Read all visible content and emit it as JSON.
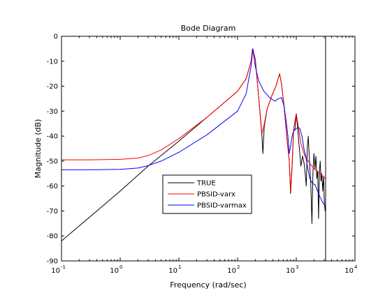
{
  "chart_data": {
    "type": "line",
    "title": "Bode Diagram",
    "xlabel": "Frequency  (rad/sec)",
    "ylabel": "Magnitude (dB)",
    "xscale": "log",
    "xlim": [
      0.1,
      10000
    ],
    "ylim": [
      -90,
      0
    ],
    "x_tick_labels": [
      {
        "base": "10",
        "exp": "-1",
        "value": 0.1
      },
      {
        "base": "10",
        "exp": "0",
        "value": 1
      },
      {
        "base": "10",
        "exp": "1",
        "value": 10
      },
      {
        "base": "10",
        "exp": "2",
        "value": 100
      },
      {
        "base": "10",
        "exp": "3",
        "value": 1000
      },
      {
        "base": "10",
        "exp": "4",
        "value": 10000
      }
    ],
    "y_ticks": [
      0,
      -10,
      -20,
      -30,
      -40,
      -50,
      -60,
      -70,
      -80,
      -90
    ],
    "y_tick_labels": [
      "0",
      "-10",
      "-20",
      "-30",
      "-40",
      "-50",
      "-60",
      "-70",
      "-80",
      "-90"
    ],
    "grid": false,
    "legend_position": "lower-center",
    "vertical_line_x": 3160,
    "series": [
      {
        "name": "TRUE",
        "color": "#000000",
        "points": [
          [
            0.1,
            -82
          ],
          [
            0.3,
            -72.5
          ],
          [
            1,
            -62
          ],
          [
            3,
            -52
          ],
          [
            10,
            -42
          ],
          [
            30,
            -32.5
          ],
          [
            100,
            -22
          ],
          [
            140,
            -17
          ],
          [
            170,
            -10
          ],
          [
            180,
            -5
          ],
          [
            200,
            -9
          ],
          [
            230,
            -25
          ],
          [
            260,
            -40
          ],
          [
            270,
            -47
          ],
          [
            285,
            -36
          ],
          [
            320,
            -29
          ],
          [
            380,
            -24
          ],
          [
            450,
            -20
          ],
          [
            520,
            -15
          ],
          [
            560,
            -19
          ],
          [
            620,
            -28
          ],
          [
            700,
            -42
          ],
          [
            760,
            -50
          ],
          [
            800,
            -63
          ],
          [
            850,
            -52
          ],
          [
            900,
            -38
          ],
          [
            950,
            -37
          ],
          [
            1000,
            -31
          ],
          [
            1050,
            -36
          ],
          [
            1120,
            -44
          ],
          [
            1200,
            -52
          ],
          [
            1280,
            -48
          ],
          [
            1360,
            -51
          ],
          [
            1420,
            -55
          ],
          [
            1480,
            -60
          ],
          [
            1540,
            -45
          ],
          [
            1600,
            -40
          ],
          [
            1680,
            -50
          ],
          [
            1760,
            -58
          ],
          [
            1850,
            -75
          ],
          [
            1920,
            -55
          ],
          [
            2000,
            -47
          ],
          [
            2080,
            -53
          ],
          [
            2160,
            -48
          ],
          [
            2240,
            -57
          ],
          [
            2320,
            -54
          ],
          [
            2400,
            -73
          ],
          [
            2480,
            -54
          ],
          [
            2560,
            -50
          ],
          [
            2640,
            -58
          ],
          [
            2720,
            -55
          ],
          [
            2820,
            -62
          ],
          [
            2920,
            -56
          ],
          [
            3000,
            -66
          ],
          [
            3100,
            -70
          ],
          [
            3150,
            -68
          ]
        ]
      },
      {
        "name": "PBSID-varx",
        "color": "#ff0000",
        "points": [
          [
            0.1,
            -49.5
          ],
          [
            0.3,
            -49.5
          ],
          [
            1,
            -49.3
          ],
          [
            2,
            -48.8
          ],
          [
            3,
            -47.8
          ],
          [
            5,
            -45.5
          ],
          [
            10,
            -41
          ],
          [
            30,
            -32.5
          ],
          [
            100,
            -22
          ],
          [
            140,
            -17
          ],
          [
            170,
            -10
          ],
          [
            180,
            -5
          ],
          [
            200,
            -9
          ],
          [
            230,
            -25
          ],
          [
            260,
            -39
          ],
          [
            280,
            -36
          ],
          [
            320,
            -29
          ],
          [
            380,
            -24
          ],
          [
            450,
            -20
          ],
          [
            520,
            -15
          ],
          [
            560,
            -19
          ],
          [
            620,
            -28
          ],
          [
            700,
            -42
          ],
          [
            760,
            -50
          ],
          [
            800,
            -62
          ],
          [
            850,
            -51
          ],
          [
            900,
            -37
          ],
          [
            1000,
            -31
          ],
          [
            1080,
            -36
          ],
          [
            1200,
            -43
          ],
          [
            1400,
            -48
          ],
          [
            1700,
            -51
          ],
          [
            2000,
            -53
          ],
          [
            2500,
            -55
          ],
          [
            3150,
            -57
          ]
        ]
      },
      {
        "name": "PBSID-varmax",
        "color": "#0000ff",
        "points": [
          [
            0.1,
            -53.5
          ],
          [
            0.3,
            -53.5
          ],
          [
            1,
            -53.3
          ],
          [
            2,
            -52.8
          ],
          [
            3,
            -51.8
          ],
          [
            5,
            -50
          ],
          [
            10,
            -46.5
          ],
          [
            30,
            -39.5
          ],
          [
            100,
            -30
          ],
          [
            140,
            -23
          ],
          [
            170,
            -12
          ],
          [
            182,
            -5
          ],
          [
            200,
            -12
          ],
          [
            230,
            -18
          ],
          [
            280,
            -22
          ],
          [
            350,
            -24.5
          ],
          [
            430,
            -26
          ],
          [
            500,
            -25
          ],
          [
            560,
            -24.5
          ],
          [
            620,
            -28
          ],
          [
            680,
            -35
          ],
          [
            720,
            -40
          ],
          [
            760,
            -47
          ],
          [
            800,
            -44
          ],
          [
            850,
            -40
          ],
          [
            900,
            -38
          ],
          [
            1000,
            -37
          ],
          [
            1080,
            -36.5
          ],
          [
            1150,
            -37
          ],
          [
            1250,
            -40
          ],
          [
            1350,
            -45
          ],
          [
            1450,
            -48
          ],
          [
            1550,
            -52
          ],
          [
            1700,
            -57
          ],
          [
            1900,
            -59
          ],
          [
            2100,
            -59.5
          ],
          [
            2300,
            -62
          ],
          [
            2600,
            -65
          ],
          [
            2900,
            -67
          ],
          [
            3150,
            -68
          ]
        ]
      }
    ]
  }
}
